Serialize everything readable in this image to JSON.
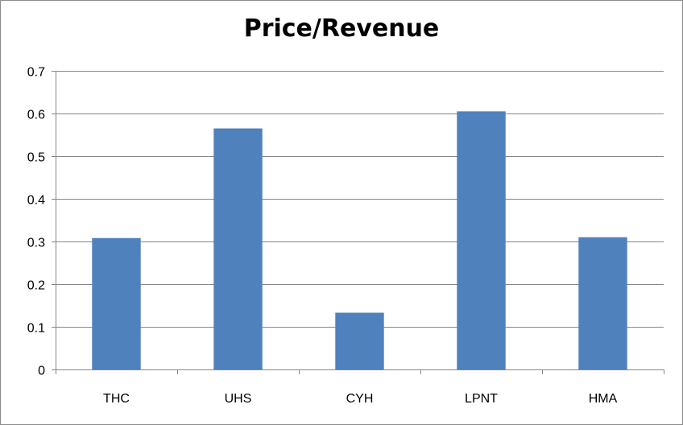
{
  "chart_data": {
    "type": "bar",
    "title": "Price/Revenue",
    "xlabel": "",
    "ylabel": "",
    "categories": [
      "THC",
      "UHS",
      "CYH",
      "LPNT",
      "HMA"
    ],
    "values": [
      0.308,
      0.565,
      0.133,
      0.605,
      0.31
    ],
    "ylim": [
      0,
      0.7
    ],
    "yticks": [
      "0",
      "0.1",
      "0.2",
      "0.3",
      "0.4",
      "0.5",
      "0.6",
      "0.7"
    ],
    "ytick_values": [
      0,
      0.1,
      0.2,
      0.3,
      0.4,
      0.5,
      0.6,
      0.7
    ],
    "grid": true,
    "legend": "none",
    "bar_color": "#4f81bd",
    "grid_color": "#868686",
    "axis_color": "#868686"
  }
}
